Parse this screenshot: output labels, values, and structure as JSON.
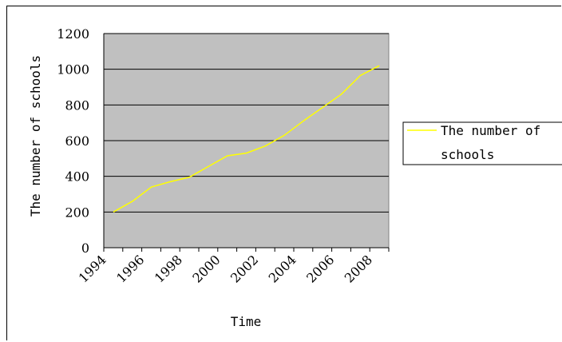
{
  "chart_data": {
    "type": "line",
    "title": "",
    "xlabel": "Time",
    "ylabel": "The number of schools",
    "x": [
      1994,
      1995,
      1996,
      1997,
      1998,
      1999,
      2000,
      2001,
      2002,
      2003,
      2004,
      2005,
      2006,
      2007,
      2008,
      2009
    ],
    "x_tick_labels": [
      "1994",
      "1996",
      "1998",
      "2000",
      "2002",
      "2004",
      "2006",
      "2008"
    ],
    "ylim": [
      0,
      1200
    ],
    "y_ticks": [
      0,
      200,
      400,
      600,
      800,
      1000,
      1200
    ],
    "grid": true,
    "legend_position": "right",
    "plot_background": "#c0c0c0",
    "series": [
      {
        "name": "The number of schools",
        "color": "#ffff00",
        "values": [
          200,
          260,
          340,
          370,
          395,
          455,
          515,
          530,
          570,
          630,
          710,
          785,
          860,
          965,
          1020,
          null
        ]
      }
    ]
  },
  "legend": {
    "line1": "The number of",
    "line2": "schools"
  }
}
